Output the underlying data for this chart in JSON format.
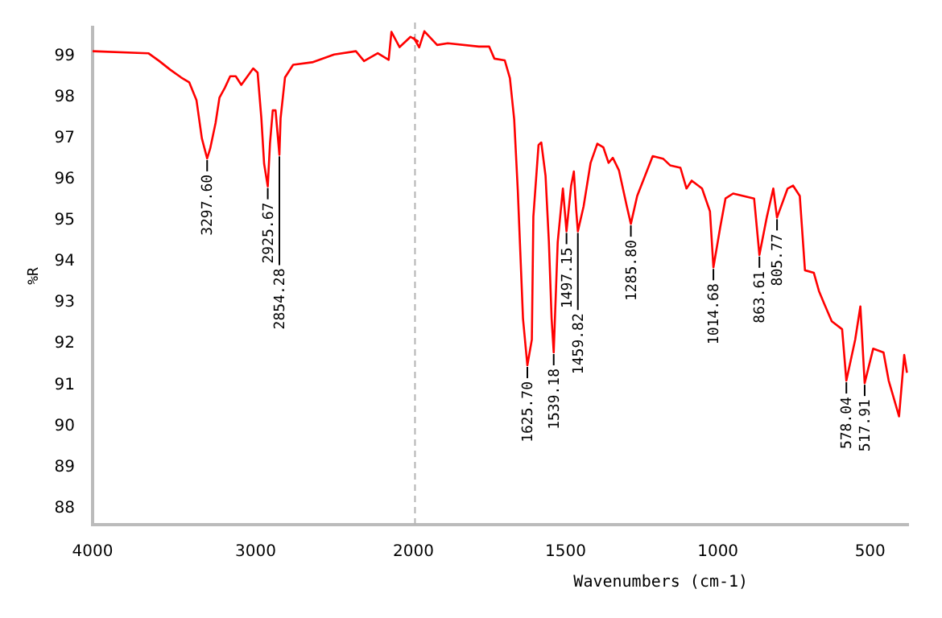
{
  "chart_data": [
    {
      "type": "line",
      "ylabel": "%R",
      "x": [
        4000,
        3658,
        3591,
        3524,
        3457,
        3407,
        3363,
        3330,
        3297.6,
        3279,
        3246,
        3222,
        3189,
        3156,
        3122,
        3088,
        3055,
        3015,
        2988,
        2965,
        2948,
        2925.67,
        2912,
        2895,
        2878,
        2854.28,
        2847,
        2820,
        2770,
        2653,
        2519,
        2385,
        2335,
        2251,
        2184,
        2167,
        2117,
        2050,
        2000
      ],
      "series": [
        {
          "color": "#ff0000",
          "values": [
            99.12,
            99.07,
            98.88,
            98.67,
            98.48,
            98.36,
            97.93,
            97.0,
            96.51,
            96.75,
            97.37,
            97.99,
            98.23,
            98.51,
            98.51,
            98.3,
            98.48,
            98.7,
            98.6,
            97.49,
            96.38,
            95.83,
            96.88,
            97.68,
            97.68,
            96.6,
            97.49,
            98.48,
            98.79,
            98.85,
            99.04,
            99.12,
            98.88,
            99.07,
            98.91,
            99.59,
            99.22,
            99.47,
            99.35
          ]
        }
      ],
      "xlim": [
        4000,
        2000
      ],
      "xticks": [
        4000,
        3000
      ],
      "ylim": [
        87.6,
        99.7
      ],
      "yticks": [
        88,
        89,
        90,
        91,
        92,
        93,
        94,
        95,
        96,
        97,
        98,
        99
      ],
      "annotations": [
        {
          "text": "3297.60",
          "x": 3297.6,
          "y": 96.51
        },
        {
          "text": "2925.67",
          "x": 2925.67,
          "y": 95.83
        },
        {
          "text": "2854.28",
          "x": 2854.28,
          "y": 96.6
        }
      ],
      "grid": false,
      "legend": false,
      "marker": "none",
      "line_style": "solid"
    },
    {
      "type": "line",
      "xlabel": "Wavenumbers (cm-1)",
      "x": [
        2000,
        1981,
        1964,
        1922,
        1887,
        1785,
        1751,
        1734,
        1700,
        1683,
        1669,
        1657,
        1640,
        1625.7,
        1611,
        1606,
        1589,
        1580,
        1566,
        1555,
        1546,
        1539.18,
        1526,
        1509,
        1497.15,
        1482,
        1473,
        1465,
        1459.82,
        1441,
        1418,
        1396,
        1376,
        1359,
        1345,
        1325,
        1299,
        1285.8,
        1265,
        1239,
        1214,
        1180,
        1157,
        1123,
        1103,
        1086,
        1052,
        1026,
        1014.68,
        992,
        975,
        950,
        881,
        863.61,
        839,
        818,
        805.77,
        771,
        753,
        731,
        714,
        685,
        668,
        651,
        626,
        592,
        578.04,
        549,
        532,
        517.91,
        490,
        456,
        439,
        422,
        405,
        388,
        379
      ],
      "series": [
        {
          "color": "#ff0000",
          "values": [
            99.35,
            99.1,
            99.49,
            99.16,
            99.2,
            99.12,
            99.12,
            98.83,
            98.79,
            98.36,
            97.37,
            95.64,
            92.56,
            91.44,
            92.06,
            95.02,
            96.75,
            96.81,
            96.01,
            94.41,
            92.56,
            91.75,
            94.41,
            95.7,
            94.67,
            95.77,
            96.11,
            95.15,
            94.67,
            95.27,
            96.32,
            96.78,
            96.69,
            96.32,
            96.44,
            96.14,
            95.27,
            94.85,
            95.52,
            96.01,
            96.48,
            96.42,
            96.26,
            96.2,
            95.7,
            95.89,
            95.7,
            95.15,
            93.8,
            94.78,
            95.46,
            95.58,
            95.46,
            94.1,
            95.02,
            95.7,
            95.0,
            95.7,
            95.77,
            95.52,
            93.73,
            93.67,
            93.23,
            92.93,
            92.5,
            92.31,
            91.07,
            92.06,
            92.86,
            91.01,
            91.84,
            91.75,
            91.07,
            90.64,
            90.21,
            91.69,
            91.26
          ]
        }
      ],
      "xlim": [
        2000,
        375
      ],
      "xticks": [
        2000,
        1500,
        1000,
        500
      ],
      "ylim": [
        87.6,
        99.7
      ],
      "yticks": [
        88,
        89,
        90,
        91,
        92,
        93,
        94,
        95,
        96,
        97,
        98,
        99
      ],
      "tick_labels": "x",
      "ref_lines": [
        {
          "axis": "x",
          "value": 2000,
          "color": "#b4b4b4",
          "line_style": "dashed"
        }
      ],
      "annotations": [
        {
          "text": "1625.70",
          "x": 1625.7,
          "y": 91.44
        },
        {
          "text": "1539.18",
          "x": 1539.18,
          "y": 91.75
        },
        {
          "text": "1497.15",
          "x": 1497.15,
          "y": 94.67
        },
        {
          "text": "1459.82",
          "x": 1459.82,
          "y": 94.67
        },
        {
          "text": "1285.80",
          "x": 1285.8,
          "y": 94.85
        },
        {
          "text": "1014.68",
          "x": 1014.68,
          "y": 93.8
        },
        {
          "text": "863.61",
          "x": 863.61,
          "y": 94.1
        },
        {
          "text": "805.77",
          "x": 805.77,
          "y": 95.0
        },
        {
          "text": "578.04",
          "x": 578.04,
          "y": 91.07
        },
        {
          "text": "517.91",
          "x": 517.91,
          "y": 91.01
        }
      ],
      "grid": false,
      "legend": false,
      "marker": "none",
      "line_style": "solid"
    }
  ]
}
